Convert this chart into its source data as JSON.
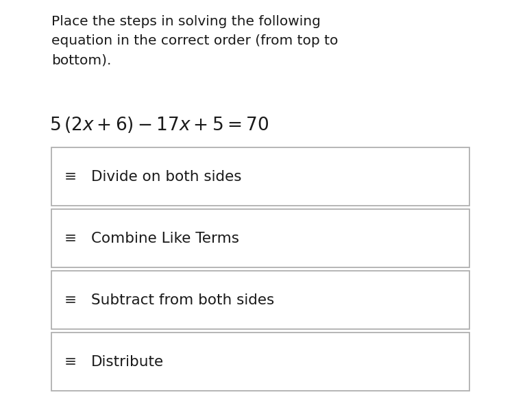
{
  "background_color": "#ffffff",
  "instruction_text": "Place the steps in solving the following\nequation in the correct order (from top to\nbottom).",
  "steps": [
    "Divide on both sides",
    "Combine Like Terms",
    "Subtract from both sides",
    "Distribute"
  ],
  "instruction_fontsize": 14.5,
  "equation_fontsize": 19,
  "step_fontsize": 15.5,
  "text_color": "#1a1a1a",
  "box_edge_color": "#b0b0b0",
  "box_face_color": "#ffffff",
  "hamburger_color": "#333333",
  "fig_width": 7.5,
  "fig_height": 5.98,
  "dpi": 100
}
